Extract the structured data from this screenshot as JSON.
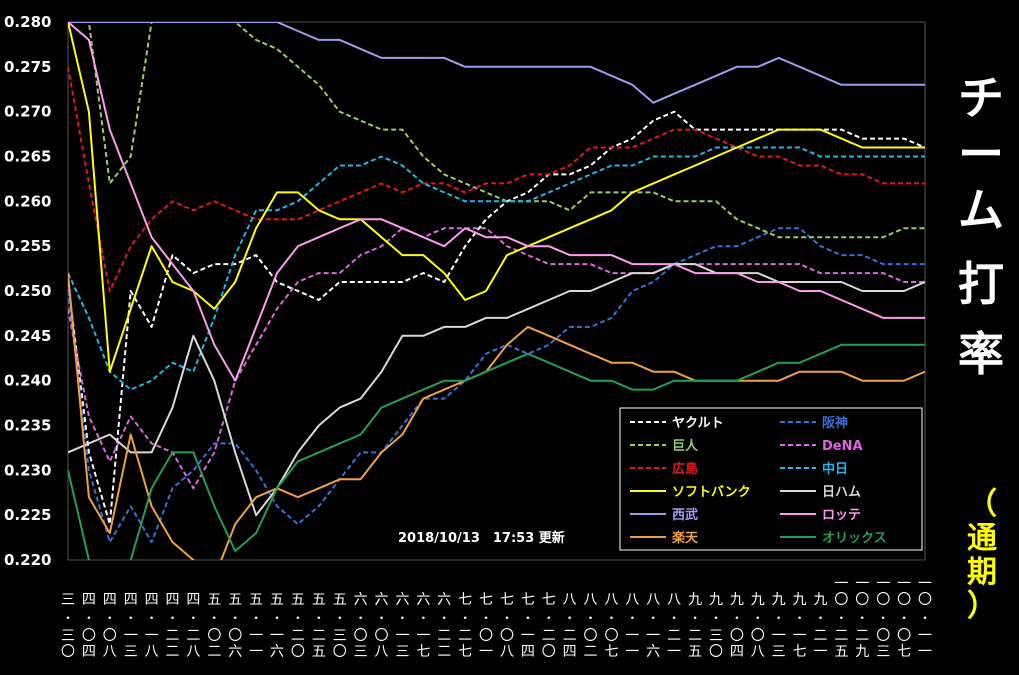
{
  "title_vertical": [
    "チ",
    "ー",
    "ム",
    "打",
    "率"
  ],
  "subtitle_vertical": [
    "（",
    "通",
    "期",
    "）"
  ],
  "update_note": "2018/10/13　17:53 更新",
  "colors": {
    "background": "#000000",
    "subtitle": "#ffff00"
  },
  "chart_data": {
    "type": "line",
    "ylim": [
      0.22,
      0.28
    ],
    "y_ticks": [
      "0.220",
      "0.225",
      "0.230",
      "0.235",
      "0.240",
      "0.245",
      "0.250",
      "0.255",
      "0.260",
      "0.265",
      "0.270",
      "0.275",
      "0.280"
    ],
    "x_ticks": [
      {
        "top": "三",
        "bottom": "三〇"
      },
      {
        "top": "四",
        "bottom": "〇四"
      },
      {
        "top": "四",
        "bottom": "〇八"
      },
      {
        "top": "四",
        "bottom": "一三"
      },
      {
        "top": "四",
        "bottom": "一八"
      },
      {
        "top": "四",
        "bottom": "二二"
      },
      {
        "top": "四",
        "bottom": "二八"
      },
      {
        "top": "五",
        "bottom": "〇二"
      },
      {
        "top": "五",
        "bottom": "〇六"
      },
      {
        "top": "五",
        "bottom": "一一"
      },
      {
        "top": "五",
        "bottom": "一六"
      },
      {
        "top": "五",
        "bottom": "二〇"
      },
      {
        "top": "五",
        "bottom": "二五"
      },
      {
        "top": "五",
        "bottom": "三〇"
      },
      {
        "top": "六",
        "bottom": "〇三"
      },
      {
        "top": "六",
        "bottom": "〇八"
      },
      {
        "top": "六",
        "bottom": "一三"
      },
      {
        "top": "六",
        "bottom": "一七"
      },
      {
        "top": "六",
        "bottom": "二二"
      },
      {
        "top": "七",
        "bottom": "二七"
      },
      {
        "top": "七",
        "bottom": "〇一"
      },
      {
        "top": "七",
        "bottom": "〇八"
      },
      {
        "top": "七",
        "bottom": "一四"
      },
      {
        "top": "七",
        "bottom": "二〇"
      },
      {
        "top": "八",
        "bottom": "二四"
      },
      {
        "top": "八",
        "bottom": "〇二"
      },
      {
        "top": "八",
        "bottom": "〇七"
      },
      {
        "top": "八",
        "bottom": "一一"
      },
      {
        "top": "八",
        "bottom": "一六"
      },
      {
        "top": "八",
        "bottom": "二一"
      },
      {
        "top": "九",
        "bottom": "二五"
      },
      {
        "top": "九",
        "bottom": "三〇"
      },
      {
        "top": "九",
        "bottom": "〇四"
      },
      {
        "top": "九",
        "bottom": "〇八"
      },
      {
        "top": "九",
        "bottom": "一三"
      },
      {
        "top": "九",
        "bottom": "一七"
      },
      {
        "top": "九",
        "bottom": "二一"
      },
      {
        "top": "一〇",
        "bottom": "二五"
      },
      {
        "top": "一〇",
        "bottom": "二九"
      },
      {
        "top": "一〇",
        "bottom": "〇三"
      },
      {
        "top": "一〇",
        "bottom": "〇七"
      },
      {
        "top": "一〇",
        "bottom": "一一"
      }
    ],
    "legend_position": "bottom-right",
    "series": [
      {
        "name": "ヤクルト",
        "color": "#ffffff",
        "dash": true,
        "values": [
          0.251,
          0.232,
          0.224,
          0.25,
          0.246,
          0.254,
          0.252,
          0.253,
          0.253,
          0.254,
          0.251,
          0.25,
          0.249,
          0.251,
          0.251,
          0.251,
          0.251,
          0.252,
          0.251,
          0.255,
          0.258,
          0.26,
          0.261,
          0.263,
          0.263,
          0.264,
          0.266,
          0.267,
          0.269,
          0.27,
          0.268,
          0.268,
          0.268,
          0.268,
          0.268,
          0.268,
          0.268,
          0.268,
          0.267,
          0.267,
          0.267,
          0.266
        ]
      },
      {
        "name": "阪神",
        "color": "#3a6fd8",
        "dash": true,
        "values": [
          0.25,
          0.23,
          0.222,
          0.226,
          0.222,
          0.228,
          0.23,
          0.233,
          0.233,
          0.23,
          0.226,
          0.224,
          0.226,
          0.229,
          0.232,
          0.232,
          0.235,
          0.238,
          0.238,
          0.24,
          0.243,
          0.244,
          0.243,
          0.244,
          0.246,
          0.246,
          0.247,
          0.25,
          0.251,
          0.253,
          0.254,
          0.255,
          0.255,
          0.256,
          0.257,
          0.257,
          0.255,
          0.254,
          0.254,
          0.253,
          0.253,
          0.253
        ]
      },
      {
        "name": "巨人",
        "color": "#9acd66",
        "dash": true,
        "values": [
          0.28,
          0.28,
          0.262,
          0.265,
          0.28,
          0.28,
          0.28,
          0.28,
          0.28,
          0.278,
          0.277,
          0.275,
          0.273,
          0.27,
          0.269,
          0.268,
          0.268,
          0.265,
          0.263,
          0.262,
          0.261,
          0.26,
          0.26,
          0.26,
          0.259,
          0.261,
          0.261,
          0.261,
          0.261,
          0.26,
          0.26,
          0.26,
          0.258,
          0.257,
          0.256,
          0.256,
          0.256,
          0.256,
          0.256,
          0.256,
          0.257,
          0.257
        ]
      },
      {
        "name": "DeNA",
        "color": "#e066e0",
        "dash": true,
        "values": [
          0.248,
          0.236,
          0.231,
          0.236,
          0.233,
          0.232,
          0.228,
          0.232,
          0.24,
          0.244,
          0.248,
          0.251,
          0.252,
          0.252,
          0.254,
          0.255,
          0.257,
          0.256,
          0.257,
          0.257,
          0.257,
          0.255,
          0.254,
          0.253,
          0.253,
          0.253,
          0.252,
          0.252,
          0.252,
          0.253,
          0.253,
          0.253,
          0.253,
          0.253,
          0.253,
          0.253,
          0.252,
          0.252,
          0.252,
          0.252,
          0.251,
          0.251
        ]
      },
      {
        "name": "広島",
        "color": "#e01818",
        "dash": true,
        "values": [
          0.275,
          0.262,
          0.25,
          0.255,
          0.258,
          0.26,
          0.259,
          0.26,
          0.259,
          0.258,
          0.258,
          0.258,
          0.259,
          0.26,
          0.261,
          0.262,
          0.261,
          0.262,
          0.262,
          0.261,
          0.262,
          0.262,
          0.263,
          0.263,
          0.264,
          0.266,
          0.266,
          0.266,
          0.267,
          0.268,
          0.268,
          0.267,
          0.266,
          0.265,
          0.265,
          0.264,
          0.264,
          0.263,
          0.263,
          0.262,
          0.262,
          0.262
        ]
      },
      {
        "name": "中日",
        "color": "#22b6e8",
        "dash": true,
        "values": [
          0.252,
          0.247,
          0.241,
          0.239,
          0.24,
          0.242,
          0.241,
          0.247,
          0.254,
          0.259,
          0.259,
          0.26,
          0.262,
          0.264,
          0.264,
          0.265,
          0.264,
          0.262,
          0.261,
          0.26,
          0.26,
          0.26,
          0.26,
          0.261,
          0.262,
          0.263,
          0.264,
          0.264,
          0.265,
          0.265,
          0.265,
          0.266,
          0.266,
          0.266,
          0.266,
          0.266,
          0.265,
          0.265,
          0.265,
          0.265,
          0.265,
          0.265
        ]
      },
      {
        "name": "ソフトバンク",
        "color": "#ffff00",
        "dash": false,
        "values": [
          0.28,
          0.27,
          0.241,
          0.248,
          0.255,
          0.251,
          0.25,
          0.248,
          0.251,
          0.257,
          0.261,
          0.261,
          0.259,
          0.258,
          0.258,
          0.256,
          0.254,
          0.254,
          0.252,
          0.249,
          0.25,
          0.254,
          0.255,
          0.256,
          0.257,
          0.258,
          0.259,
          0.261,
          0.262,
          0.263,
          0.264,
          0.265,
          0.266,
          0.267,
          0.268,
          0.268,
          0.268,
          0.267,
          0.266,
          0.266,
          0.266,
          0.266
        ]
      },
      {
        "name": "日ハム",
        "color": "#d8d8d8",
        "dash": false,
        "values": [
          0.232,
          0.233,
          0.234,
          0.232,
          0.232,
          0.237,
          0.245,
          0.24,
          0.232,
          0.225,
          0.228,
          0.232,
          0.235,
          0.237,
          0.238,
          0.241,
          0.245,
          0.245,
          0.246,
          0.246,
          0.247,
          0.247,
          0.248,
          0.249,
          0.25,
          0.25,
          0.251,
          0.252,
          0.252,
          0.253,
          0.253,
          0.252,
          0.252,
          0.252,
          0.251,
          0.251,
          0.251,
          0.251,
          0.25,
          0.25,
          0.25,
          0.251
        ]
      },
      {
        "name": "西武",
        "color": "#9c9cf0",
        "dash": false,
        "values": [
          0.28,
          0.28,
          0.28,
          0.28,
          0.28,
          0.28,
          0.28,
          0.28,
          0.28,
          0.28,
          0.28,
          0.279,
          0.278,
          0.278,
          0.277,
          0.276,
          0.276,
          0.276,
          0.276,
          0.275,
          0.275,
          0.275,
          0.275,
          0.275,
          0.275,
          0.275,
          0.274,
          0.273,
          0.271,
          0.272,
          0.273,
          0.274,
          0.275,
          0.275,
          0.276,
          0.275,
          0.274,
          0.273,
          0.273,
          0.273,
          0.273,
          0.273
        ]
      },
      {
        "name": "ロッテ",
        "color": "#ff99ee",
        "dash": false,
        "values": [
          0.28,
          0.278,
          0.268,
          0.262,
          0.256,
          0.253,
          0.25,
          0.244,
          0.24,
          0.246,
          0.252,
          0.255,
          0.256,
          0.257,
          0.258,
          0.258,
          0.257,
          0.256,
          0.255,
          0.257,
          0.256,
          0.256,
          0.255,
          0.255,
          0.254,
          0.254,
          0.254,
          0.253,
          0.253,
          0.253,
          0.252,
          0.252,
          0.252,
          0.251,
          0.251,
          0.25,
          0.25,
          0.249,
          0.248,
          0.247,
          0.247,
          0.247
        ]
      },
      {
        "name": "楽天",
        "color": "#f0a040",
        "dash": false,
        "values": [
          0.252,
          0.227,
          0.223,
          0.234,
          0.226,
          0.222,
          0.22,
          0.218,
          0.224,
          0.227,
          0.228,
          0.227,
          0.228,
          0.229,
          0.229,
          0.232,
          0.234,
          0.238,
          0.239,
          0.24,
          0.241,
          0.244,
          0.246,
          0.245,
          0.244,
          0.243,
          0.242,
          0.242,
          0.241,
          0.241,
          0.24,
          0.24,
          0.24,
          0.24,
          0.24,
          0.241,
          0.241,
          0.241,
          0.24,
          0.24,
          0.24,
          0.241
        ]
      },
      {
        "name": "オリックス",
        "color": "#22a050",
        "dash": false,
        "values": [
          0.23,
          0.22,
          0.219,
          0.22,
          0.228,
          0.232,
          0.232,
          0.226,
          0.221,
          0.223,
          0.228,
          0.231,
          0.232,
          0.233,
          0.234,
          0.237,
          0.238,
          0.239,
          0.24,
          0.24,
          0.241,
          0.242,
          0.243,
          0.242,
          0.241,
          0.24,
          0.24,
          0.239,
          0.239,
          0.24,
          0.24,
          0.24,
          0.24,
          0.241,
          0.242,
          0.242,
          0.243,
          0.244,
          0.244,
          0.244,
          0.244,
          0.244
        ]
      }
    ]
  }
}
